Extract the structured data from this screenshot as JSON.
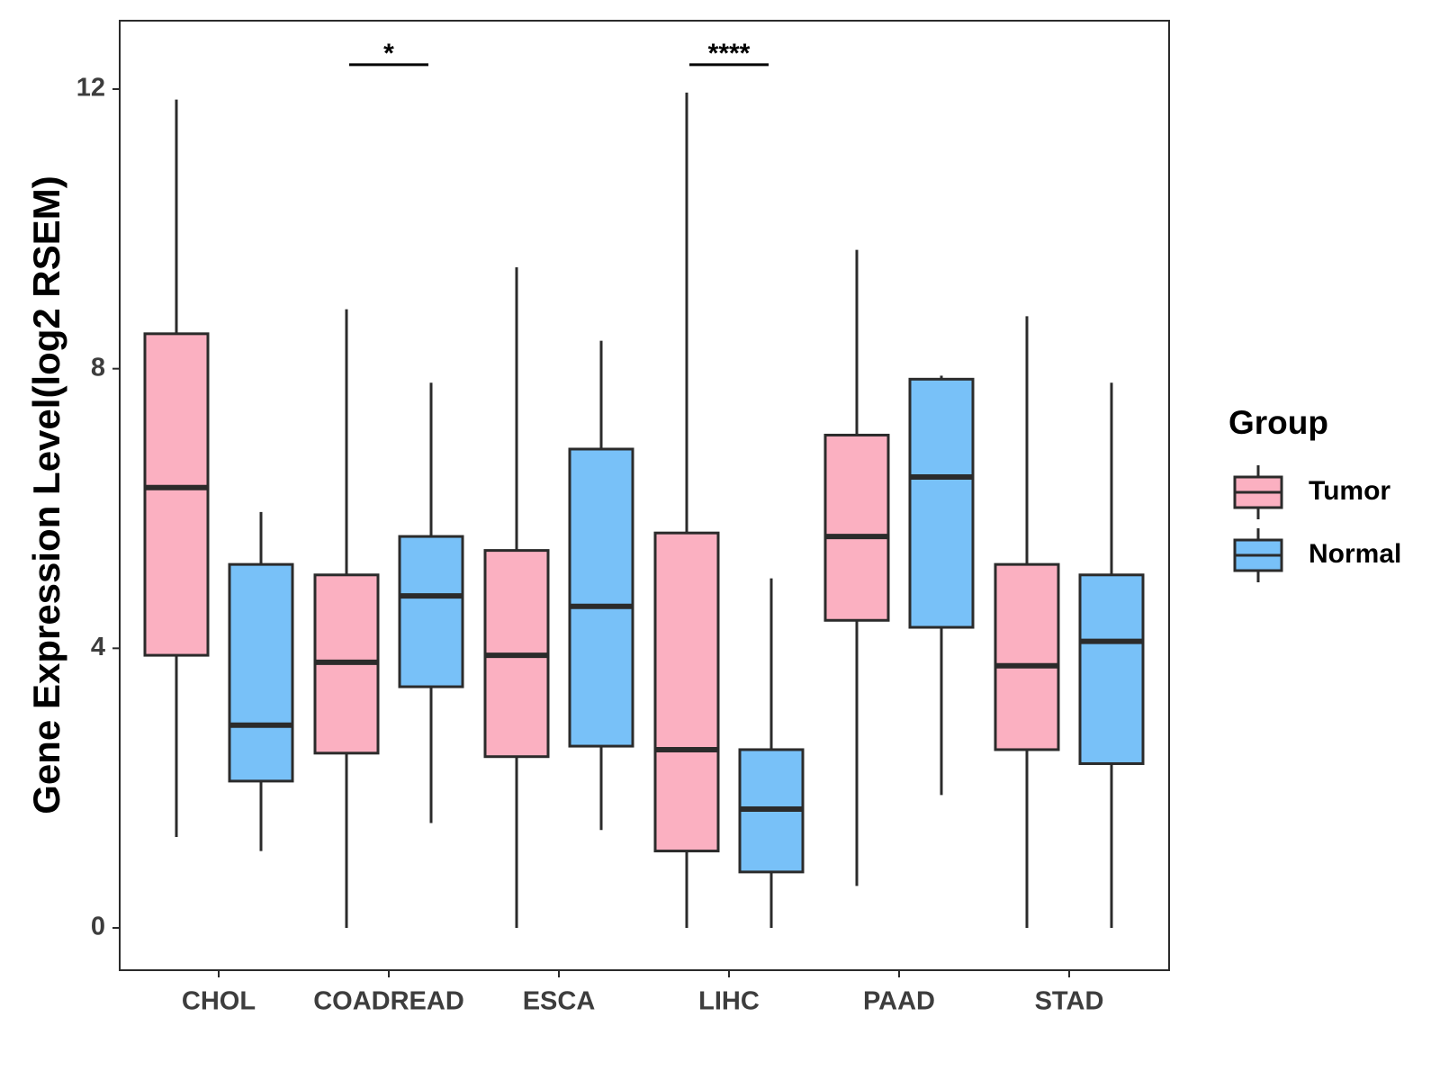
{
  "chart_data": {
    "type": "boxplot",
    "ylabel": "Gene Expression Level(log2 RSEM)",
    "xlabel": "",
    "ylim": [
      -0.6,
      13.0
    ],
    "yticks": [
      0,
      4,
      8,
      12
    ],
    "categories": [
      "CHOL",
      "COADREAD",
      "ESCA",
      "LIHC",
      "PAAD",
      "STAD"
    ],
    "legend": {
      "title": "Group",
      "position": "right",
      "entries": [
        {
          "name": "Tumor",
          "color": "#fbb0c1"
        },
        {
          "name": "Normal",
          "color": "#78c1f8"
        }
      ]
    },
    "series": [
      {
        "name": "Tumor",
        "color": "#fbb0c1",
        "boxes": [
          {
            "category": "CHOL",
            "min": 1.3,
            "q1": 3.9,
            "median": 6.3,
            "q3": 8.5,
            "max": 11.85
          },
          {
            "category": "COADREAD",
            "min": 0.0,
            "q1": 2.5,
            "median": 3.8,
            "q3": 5.05,
            "max": 8.85
          },
          {
            "category": "ESCA",
            "min": 0.0,
            "q1": 2.45,
            "median": 3.9,
            "q3": 5.4,
            "max": 9.45
          },
          {
            "category": "LIHC",
            "min": 0.0,
            "q1": 1.1,
            "median": 2.55,
            "q3": 5.65,
            "max": 11.95
          },
          {
            "category": "PAAD",
            "min": 0.6,
            "q1": 4.4,
            "median": 5.6,
            "q3": 7.05,
            "max": 9.7
          },
          {
            "category": "STAD",
            "min": 0.0,
            "q1": 2.55,
            "median": 3.75,
            "q3": 5.2,
            "max": 8.75
          }
        ]
      },
      {
        "name": "Normal",
        "color": "#78c1f8",
        "boxes": [
          {
            "category": "CHOL",
            "min": 1.1,
            "q1": 2.1,
            "median": 2.9,
            "q3": 5.2,
            "max": 5.95
          },
          {
            "category": "COADREAD",
            "min": 1.5,
            "q1": 3.45,
            "median": 4.75,
            "q3": 5.6,
            "max": 7.8
          },
          {
            "category": "ESCA",
            "min": 1.4,
            "q1": 2.6,
            "median": 4.6,
            "q3": 6.85,
            "max": 8.4
          },
          {
            "category": "LIHC",
            "min": 0.0,
            "q1": 0.8,
            "median": 1.7,
            "q3": 2.55,
            "max": 5.0
          },
          {
            "category": "PAAD",
            "min": 1.9,
            "q1": 4.3,
            "median": 6.45,
            "q3": 7.85,
            "max": 7.9
          },
          {
            "category": "STAD",
            "min": 0.0,
            "q1": 2.35,
            "median": 4.1,
            "q3": 5.05,
            "max": 7.8
          }
        ]
      }
    ],
    "annotations": [
      {
        "category": "COADREAD",
        "label": "*",
        "y": 12.35
      },
      {
        "category": "LIHC",
        "label": "****",
        "y": 12.35
      }
    ]
  }
}
